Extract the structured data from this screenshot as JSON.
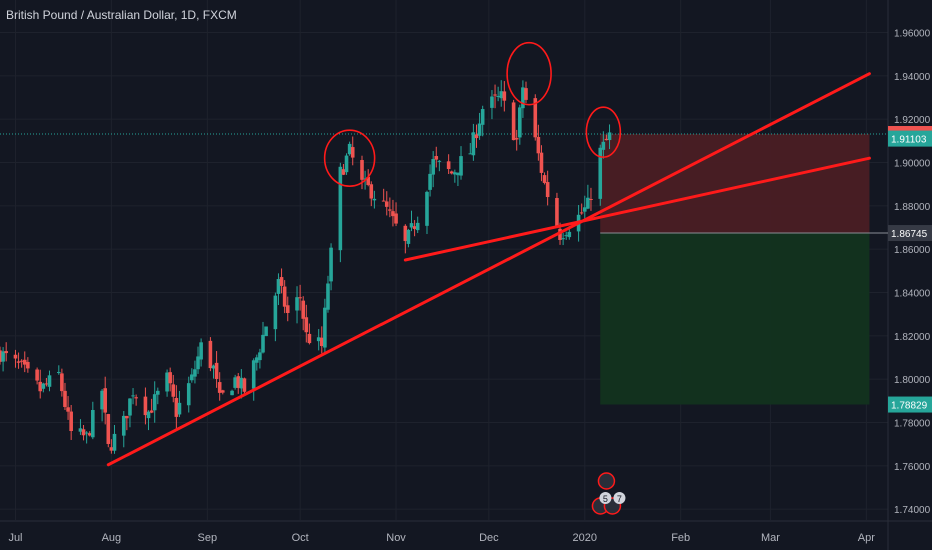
{
  "header": {
    "title": "British Pound / Australian Dollar, 1D, FXCM"
  },
  "colors": {
    "background": "#131722",
    "grid": "#1e222d",
    "axis_text": "#b2b5be",
    "up": "#26a69a",
    "down": "#ef5350",
    "annotation": "#ff1a1a",
    "loss_zone": "#4a1d24",
    "profit_zone": "#12331f",
    "label_red": "#ef5350",
    "label_teal": "#26a69a",
    "label_grey": "#363a45",
    "label_green": "#26a69a"
  },
  "chart_data": {
    "type": "candlestick",
    "title": "British Pound / Australian Dollar, 1D, FXCM",
    "symbol": "GBPAUD",
    "interval": "1D",
    "source": "FXCM",
    "ylim": [
      1.735,
      1.975
    ],
    "y_ticks": [
      "1.74000",
      "1.76000",
      "1.78000",
      "1.80000",
      "1.82000",
      "1.84000",
      "1.86000",
      "1.88000",
      "1.90000",
      "1.92000",
      "1.94000",
      "1.96000"
    ],
    "x_ticks": [
      {
        "label": "Jul",
        "date": "2019-07-01"
      },
      {
        "label": "Aug",
        "date": "2019-08-01"
      },
      {
        "label": "Sep",
        "date": "2019-09-01"
      },
      {
        "label": "Oct",
        "date": "2019-10-01"
      },
      {
        "label": "Nov",
        "date": "2019-11-01"
      },
      {
        "label": "Dec",
        "date": "2019-12-01"
      },
      {
        "label": "2020",
        "date": "2020-01-01"
      },
      {
        "label": "Feb",
        "date": "2020-02-01"
      },
      {
        "label": "Mar",
        "date": "2020-03-01"
      },
      {
        "label": "Apr",
        "date": "2020-04-01"
      }
    ],
    "x_range": [
      "2019-06-26",
      "2020-04-08"
    ],
    "anchors": [
      [
        "2019-06-26",
        1.812
      ],
      [
        "2019-07-03",
        1.805
      ],
      [
        "2019-07-09",
        1.795
      ],
      [
        "2019-07-15",
        1.802
      ],
      [
        "2019-07-19",
        1.775
      ],
      [
        "2019-07-24",
        1.773
      ],
      [
        "2019-07-29",
        1.795
      ],
      [
        "2019-07-31",
        1.768
      ],
      [
        "2019-08-05",
        1.78
      ],
      [
        "2019-08-08",
        1.795
      ],
      [
        "2019-08-13",
        1.785
      ],
      [
        "2019-08-19",
        1.8
      ],
      [
        "2019-08-22",
        1.785
      ],
      [
        "2019-08-27",
        1.8
      ],
      [
        "2019-08-30",
        1.815
      ],
      [
        "2019-09-03",
        1.805
      ],
      [
        "2019-09-05",
        1.79
      ],
      [
        "2019-09-10",
        1.8
      ],
      [
        "2019-09-13",
        1.795
      ],
      [
        "2019-09-17",
        1.81
      ],
      [
        "2019-09-20",
        1.825
      ],
      [
        "2019-09-24",
        1.844
      ],
      [
        "2019-09-27",
        1.83
      ],
      [
        "2019-10-01",
        1.838
      ],
      [
        "2019-10-03",
        1.82
      ],
      [
        "2019-10-08",
        1.815
      ],
      [
        "2019-10-10",
        1.845
      ],
      [
        "2019-10-14",
        1.895
      ],
      [
        "2019-10-17",
        1.905
      ],
      [
        "2019-10-21",
        1.89
      ],
      [
        "2019-10-24",
        1.887
      ],
      [
        "2019-10-29",
        1.878
      ],
      [
        "2019-11-04",
        1.862
      ],
      [
        "2019-11-08",
        1.875
      ],
      [
        "2019-11-13",
        1.9
      ],
      [
        "2019-11-19",
        1.895
      ],
      [
        "2019-11-25",
        1.905
      ],
      [
        "2019-11-29",
        1.925
      ],
      [
        "2019-12-05",
        1.93
      ],
      [
        "2019-12-10",
        1.91
      ],
      [
        "2019-12-12",
        1.935
      ],
      [
        "2019-12-16",
        1.91
      ],
      [
        "2019-12-19",
        1.89
      ],
      [
        "2019-12-24",
        1.867
      ],
      [
        "2019-12-30",
        1.875
      ],
      [
        "2020-01-02",
        1.88
      ],
      [
        "2020-01-06",
        1.905
      ],
      [
        "2020-01-09",
        1.912
      ]
    ],
    "levels": [
      {
        "value": 1.91315,
        "label": "1.91315",
        "style": "red"
      },
      {
        "value": 1.91103,
        "label": "1.91103",
        "style": "teal"
      },
      {
        "value": 1.86745,
        "label": "1.86745",
        "style": "grey"
      },
      {
        "value": 1.78829,
        "label": "1.78829",
        "style": "green"
      }
    ],
    "last_price": 1.91103,
    "position": {
      "type": "short",
      "start": "2020-01-06",
      "end": "2020-04-02",
      "stop": 1.91315,
      "entry": 1.86745,
      "target": 1.78829
    },
    "trendlines": [
      {
        "from": [
          "2019-07-31",
          1.7605
        ],
        "to": [
          "2020-04-02",
          1.941
        ]
      },
      {
        "from": [
          "2019-11-04",
          1.855
        ],
        "to": [
          "2020-04-02",
          1.902
        ]
      }
    ],
    "circles": [
      {
        "center": [
          "2019-10-17",
          1.902
        ],
        "rx": 25,
        "ry": 28
      },
      {
        "center": [
          "2019-12-14",
          1.941
        ],
        "rx": 22,
        "ry": 31
      },
      {
        "center": [
          "2020-01-07",
          1.914
        ],
        "rx": 17,
        "ry": 25
      }
    ],
    "event_badges": [
      "5",
      "7"
    ]
  }
}
